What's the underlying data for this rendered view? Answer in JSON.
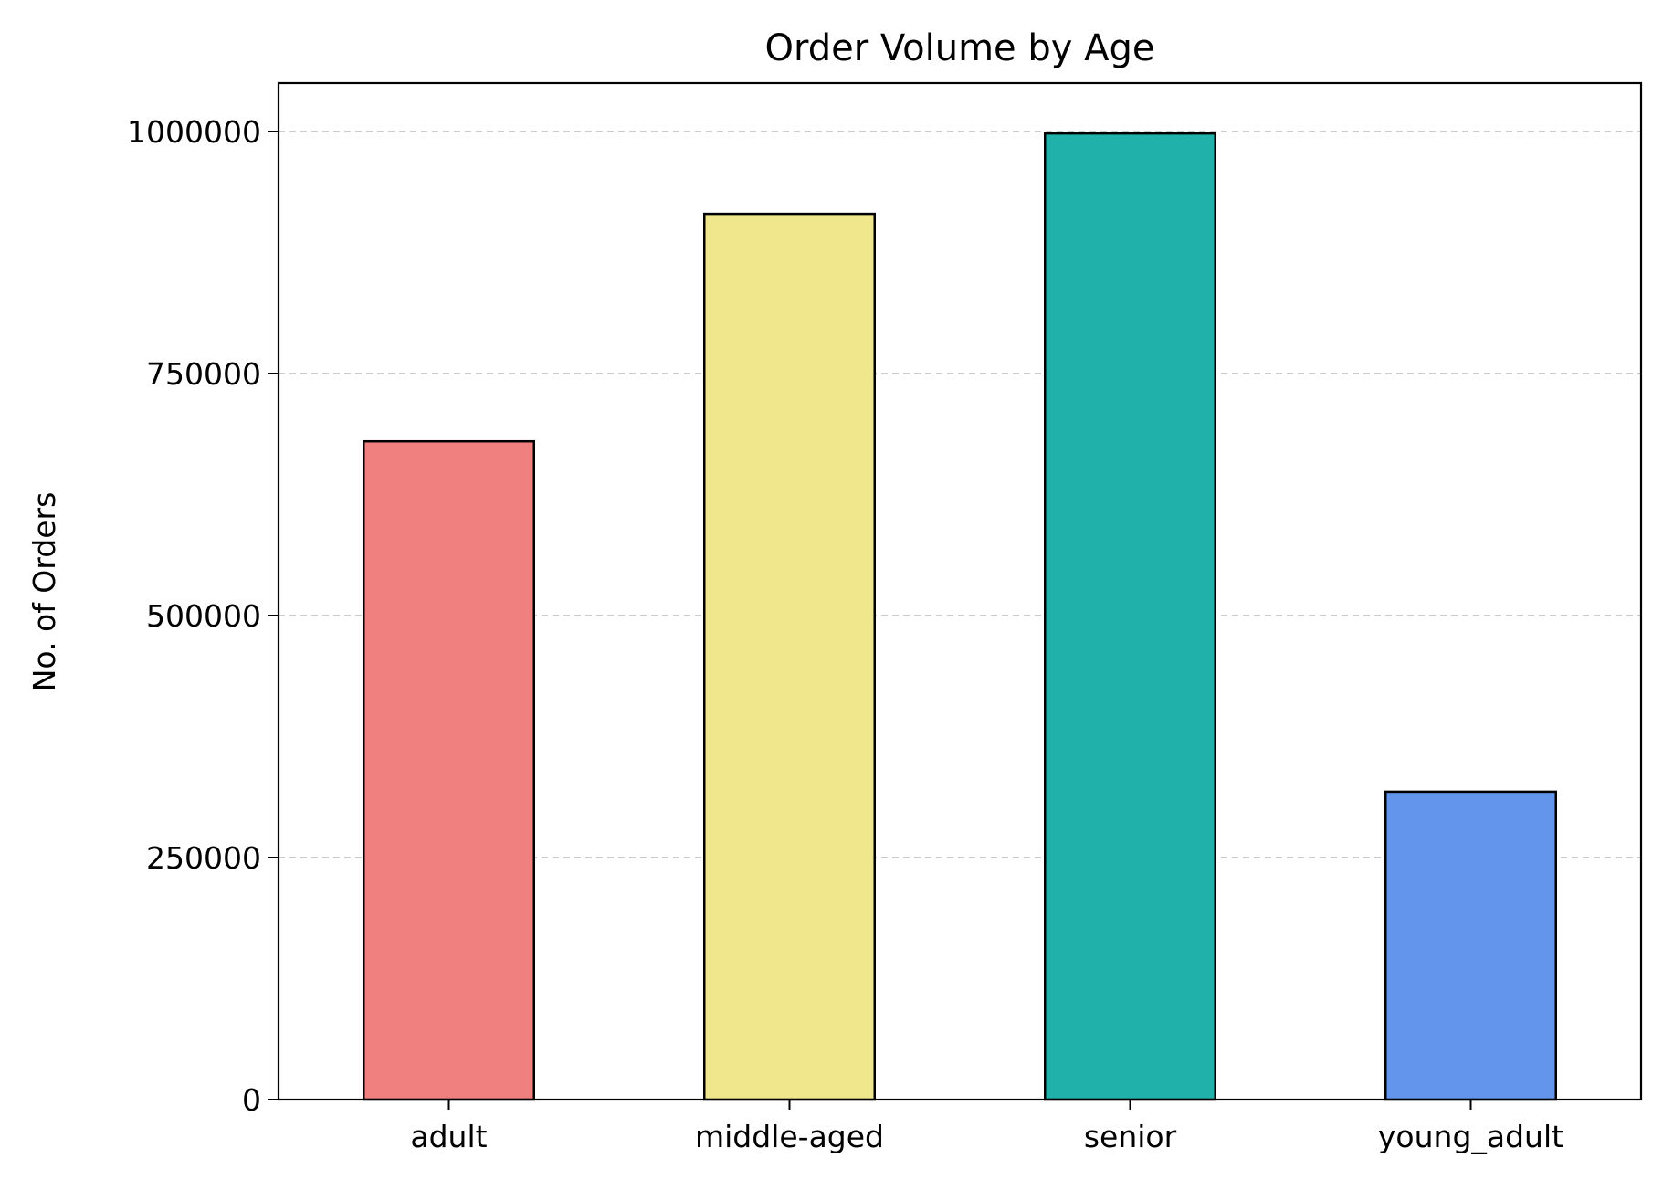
{
  "chart_data": {
    "type": "bar",
    "title": "Order Volume by Age",
    "xlabel": "",
    "ylabel": "No. of Orders",
    "categories": [
      "adult",
      "middle-aged",
      "senior",
      "young_adult"
    ],
    "values": [
      680000,
      915000,
      998000,
      318000
    ],
    "colors": [
      "#f08080",
      "#f0e68c",
      "#20b2aa",
      "#6495ed"
    ],
    "edge_color": "#000000",
    "ylim": [
      0,
      1050000
    ],
    "yticks": [
      0,
      250000,
      500000,
      750000,
      1000000
    ],
    "ytick_labels": [
      "0",
      "250000",
      "500000",
      "750000",
      "1000000"
    ],
    "grid": "y, dashed",
    "legend": "none"
  }
}
